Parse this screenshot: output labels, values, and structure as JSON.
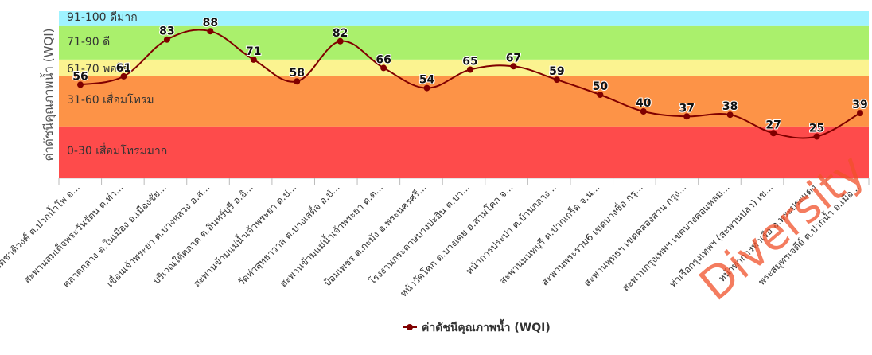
{
  "chart_data": {
    "type": "line",
    "ylabel": "ค่าดัชนีคุณภาพน้ำ (WQI)",
    "ylim": [
      0,
      100
    ],
    "categories": [
      "หน้าวัดชาติวงศ์ ต.ปากน้ำโพ อ...",
      "สะพานสมเด็จพระวันรัตน ต.ท่า...",
      "ตลาดกลาง ต.ในเมือง อ.เมืองชัย...",
      "เขื่อนเจ้าพระยา ต.บางหลวง อ.ส...",
      "บริเวณใต้ตลาด ต.อินทร์บุรี อ.อิ...",
      "สะพานข้ามแม่น้ำเจ้าพระยา ต.ป...",
      "วัดท่าสุทธาวาส ต.บางเสด็จ อ.ป่...",
      "สะพานข้ามแม่น้ำเจ้าพระยา ต.ต...",
      "ป้อมเพชร ต.กะมัง อ.พระนครศรี...",
      "โรงงานกระดาษบางปะอิน ต.บา...",
      "หน้าวัดโคก ต.บางเดย อ.สามโคก จ...",
      "หน้าการประปา ต.บ้านกลาง...",
      "สะพานนนทบุรี ต.ปากเกร็ด จ.น...",
      "สะพานพระราม6 เขตบางซื่อ กรุ...",
      "สะพานพุทธฯ เขตคลองสาน กรุง...",
      "สะพานกรุงเทพฯ เขตบางคอแหลม...",
      "ท่าเรือกรุงเทพฯ (สะพานปลา) เข...",
      "หน้าท่าการท่าเรือ อ.พระประแดง",
      "พระสมุทรเจดีย์ ต.ปากน้ำ อ.เมือ..."
    ],
    "series": [
      {
        "name": "ค่าดัชนีคุณภาพน้ำ (WQI)",
        "values": [
          56,
          61,
          83,
          88,
          71,
          58,
          82,
          66,
          54,
          65,
          67,
          59,
          50,
          40,
          37,
          38,
          27,
          25,
          39
        ],
        "color": "#800000"
      }
    ],
    "bands": [
      {
        "from": 91,
        "to": 100,
        "label": "91-100 ดีมาก",
        "color": "#9ff3ff"
      },
      {
        "from": 71,
        "to": 90,
        "label": "71-90 ดี",
        "color": "#aaf06c"
      },
      {
        "from": 61,
        "to": 70,
        "label": "61-70 พอใช้",
        "color": "#fbf390"
      },
      {
        "from": 31,
        "to": 60,
        "label": "31-60 เสื่อมโทรม",
        "color": "#fd9347"
      },
      {
        "from": 0,
        "to": 30,
        "label": "0-30 เสื่อมโทรมมาก",
        "color": "#fe4b4b"
      }
    ],
    "legend": {
      "position": "bottom",
      "label": "ค่าดัชนีคุณภาพน้ำ (WQI)"
    },
    "grid": false
  },
  "watermark": {
    "text": "Diversity",
    "color": "#f0502a"
  }
}
